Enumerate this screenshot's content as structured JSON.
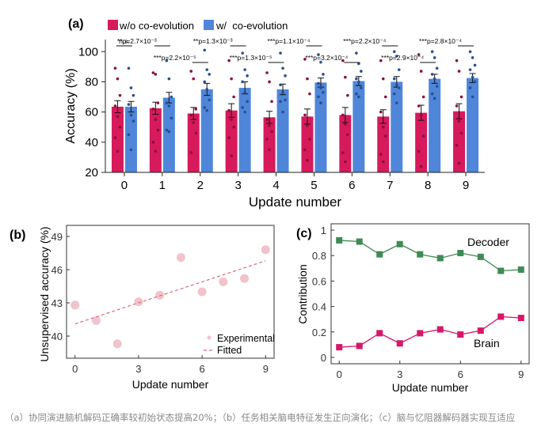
{
  "chart_data": [
    {
      "type": "bar",
      "panel": "(a)",
      "ylabel": "Accuracy (%)",
      "xlabel": "Update number",
      "categories": [
        "0",
        "1",
        "2",
        "3",
        "4",
        "5",
        "6",
        "7",
        "8",
        "9"
      ],
      "ylim": [
        20,
        108
      ],
      "yticks": [
        20,
        40,
        60,
        80,
        100
      ],
      "series": [
        {
          "name": "w/o co-evolution",
          "color": "#d61a5c",
          "values": [
            63.5,
            62.5,
            59,
            61,
            56.5,
            57,
            58,
            57,
            59.5,
            60.5
          ],
          "errors": [
            4,
            4,
            4,
            4.5,
            4,
            5,
            5,
            4.5,
            5,
            5
          ]
        },
        {
          "name": "w/  co-evolution",
          "color": "#4f86d9",
          "values": [
            63.5,
            69.5,
            75,
            76,
            75,
            79.5,
            80.5,
            80,
            82,
            82.5
          ],
          "errors": [
            3.5,
            3.5,
            4,
            4,
            3.5,
            3,
            3,
            3.5,
            3,
            3
          ]
        }
      ],
      "points": [
        [
          [
            89,
            82,
            71,
            64,
            57,
            50,
            43,
            34
          ],
          [
            89,
            76,
            71,
            65,
            58,
            54,
            45,
            35
          ]
        ],
        [
          [
            86,
            85,
            66,
            62,
            55,
            48,
            40,
            34
          ],
          [
            94,
            82,
            70,
            66,
            64,
            56,
            48,
            47
          ]
        ],
        [
          [
            87,
            82,
            62,
            58,
            53,
            46,
            33
          ],
          [
            101,
            88,
            85,
            80,
            75,
            68,
            63,
            61
          ]
        ],
        [
          [
            94,
            82,
            70,
            61,
            55,
            50,
            43,
            31
          ],
          [
            99,
            88,
            84,
            80,
            73,
            67,
            63,
            60
          ]
        ],
        [
          [
            86,
            80,
            67,
            55,
            51,
            47,
            42,
            35
          ],
          [
            99,
            89,
            84,
            78,
            73,
            68,
            67,
            60
          ]
        ],
        [
          [
            95,
            82,
            72,
            58,
            51,
            42,
            35,
            28
          ],
          [
            98,
            93,
            85,
            79,
            76,
            73,
            70,
            66
          ]
        ],
        [
          [
            94,
            83,
            71,
            58,
            52,
            45,
            33,
            27
          ],
          [
            99,
            92,
            87,
            82,
            80,
            76,
            72,
            70
          ]
        ],
        [
          [
            94,
            82,
            70,
            60,
            50,
            44,
            32,
            27
          ],
          [
            100,
            97,
            88,
            82,
            78,
            76,
            72,
            66
          ]
        ],
        [
          [
            98,
            87,
            70,
            64,
            58,
            44,
            34,
            24
          ],
          [
            100,
            96,
            89,
            85,
            82,
            77,
            72,
            69
          ]
        ],
        [
          [
            94,
            87,
            70,
            64,
            54,
            46,
            38,
            26
          ],
          [
            100,
            96,
            91,
            88,
            83,
            80,
            76,
            70
          ]
        ]
      ],
      "significance": [
        {
          "update": 0,
          "label": "n.s."
        },
        {
          "update": 1,
          "label": "**p=2.7×10⁻³"
        },
        {
          "update": 2,
          "label": "***p=2.2×10⁻⁵"
        },
        {
          "update": 3,
          "label": "**p=1.3×10⁻³"
        },
        {
          "update": 4,
          "label": "***p=1.3×10⁻⁵"
        },
        {
          "update": 5,
          "label": "***p=1.1×10⁻⁴"
        },
        {
          "update": 6,
          "label": "***p=3.2×10⁻⁴"
        },
        {
          "update": 7,
          "label": "***p=2.2×10⁻⁴"
        },
        {
          "update": 8,
          "label": "***p=2.9×10⁻⁴"
        },
        {
          "update": 9,
          "label": "***p=2.8×10⁻⁴"
        }
      ]
    },
    {
      "type": "scatter",
      "panel": "(b)",
      "xlabel": "Update number",
      "ylabel": "Unsupervised accuracy (%)",
      "xlim": [
        -0.4,
        9.4
      ],
      "ylim": [
        38,
        50
      ],
      "xticks": [
        0,
        3,
        6,
        9
      ],
      "yticks": [
        40,
        43,
        46,
        49
      ],
      "series": [
        {
          "name": "Experimental",
          "color": "#f1c3cc",
          "x": [
            0,
            1,
            2,
            3,
            4,
            5,
            6,
            7,
            8,
            9
          ],
          "y": [
            42.8,
            41.4,
            39.3,
            43.1,
            43.7,
            47.1,
            44.0,
            44.9,
            45.2,
            47.8
          ]
        },
        {
          "name": "Fitted",
          "color": "#d96a7a",
          "x": [
            0,
            9
          ],
          "y": [
            41.1,
            46.8
          ]
        }
      ]
    },
    {
      "type": "line",
      "panel": "(c)",
      "xlabel": "Update number",
      "ylabel": "Contribution",
      "xlim": [
        -0.4,
        9.4
      ],
      "ylim": [
        -0.05,
        1.05
      ],
      "xticks": [
        0,
        3,
        6,
        9
      ],
      "yticks": [
        0,
        0.2,
        0.4,
        0.6,
        0.8,
        1
      ],
      "x": [
        0,
        1,
        2,
        3,
        4,
        5,
        6,
        7,
        8,
        9
      ],
      "series": [
        {
          "name": "Decoder",
          "color": "#3f8a55",
          "values": [
            0.92,
            0.91,
            0.81,
            0.89,
            0.81,
            0.78,
            0.82,
            0.79,
            0.68,
            0.69
          ]
        },
        {
          "name": "Brain",
          "color": "#d6176a",
          "values": [
            0.08,
            0.09,
            0.19,
            0.11,
            0.19,
            0.22,
            0.18,
            0.21,
            0.32,
            0.31
          ]
        }
      ]
    }
  ],
  "caption": "（a）协同演进脑机解码正确率较初始状态提高20%；（b）任务相关脑电特征发生正向演化；（c）脑与忆阻器解码器实现互适应"
}
